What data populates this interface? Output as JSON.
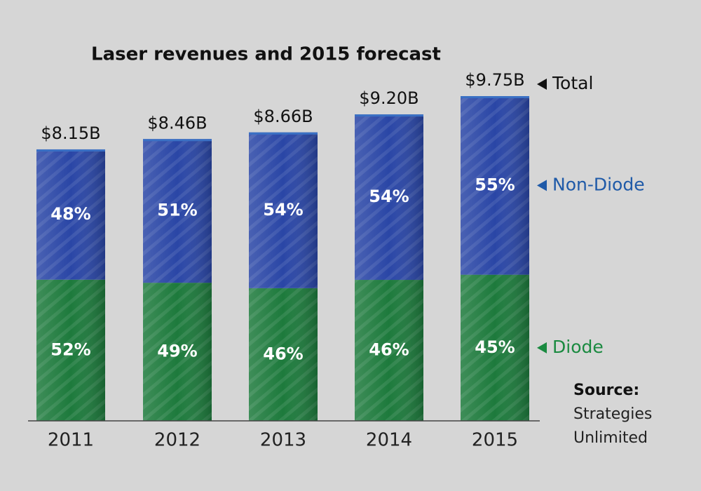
{
  "chart_data": {
    "type": "bar",
    "stacked": true,
    "title": "Laser revenues and 2015 forecast",
    "categories": [
      "2011",
      "2012",
      "2013",
      "2014",
      "2015"
    ],
    "series": [
      {
        "name": "Diode",
        "color": "#1d7a3c",
        "values": [
          52,
          49,
          46,
          46,
          45
        ],
        "value_labels": [
          "52%",
          "49%",
          "46%",
          "46%",
          "45%"
        ]
      },
      {
        "name": "Non-Diode",
        "color": "#2a46a6",
        "values": [
          48,
          51,
          54,
          54,
          55
        ],
        "value_labels": [
          "48%",
          "51%",
          "54%",
          "54%",
          "55%"
        ]
      }
    ],
    "totals": {
      "name": "Total",
      "values": [
        8.15,
        8.46,
        8.66,
        9.2,
        9.75
      ],
      "value_labels": [
        "$8.15B",
        "$8.46B",
        "$8.66B",
        "$9.20B",
        "$9.75B"
      ]
    },
    "source": {
      "label": "Source:",
      "lines": [
        "Strategies",
        "Unlimited"
      ]
    }
  }
}
